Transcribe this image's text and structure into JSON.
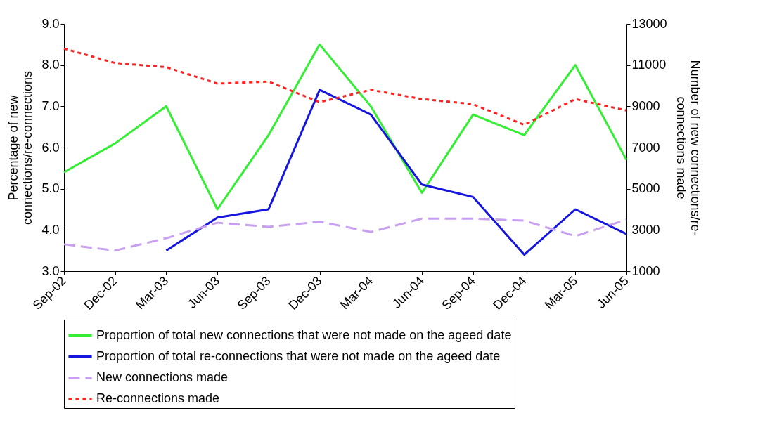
{
  "chart_data": {
    "type": "line",
    "ylabel": "Percentage of new connections/re-connections",
    "y2label": "Number of new connections/re-connections made",
    "categories": [
      "Sep-02",
      "Dec-02",
      "Mar-03",
      "Jun-03",
      "Sep-03",
      "Dec-03",
      "Mar-04",
      "Jun-04",
      "Sep-04",
      "Dec-04",
      "Mar-05",
      "Jun-05"
    ],
    "series": [
      {
        "name": "Proportion of total new connections that were not made on the ageed date",
        "color": "#33ee33",
        "line_style": "solid",
        "values": [
          5.4,
          6.1,
          7.0,
          4.5,
          6.3,
          8.5,
          7.0,
          4.9,
          6.8,
          6.3,
          8.0,
          5.7
        ]
      },
      {
        "name": "Proportion of total re-connections that were not made on the ageed date",
        "color": "#1515dd",
        "line_style": "solid",
        "values": [
          null,
          null,
          3.5,
          4.3,
          4.5,
          7.4,
          6.8,
          5.1,
          4.8,
          3.4,
          4.5,
          3.9
        ]
      },
      {
        "name": "New connections made",
        "color": "#c8a0f0",
        "line_style": "dashed",
        "axis": "y2",
        "values": [
          2300,
          2000,
          2600,
          3350,
          3150,
          3400,
          2900,
          3550,
          3550,
          3450,
          2700,
          3500
        ]
      },
      {
        "name": "Re-connections made",
        "color": "#ff2020",
        "line_style": "dotted",
        "axis": "y2",
        "values": [
          11800,
          11100,
          10900,
          10100,
          10200,
          9200,
          9800,
          9350,
          9100,
          8100,
          9350,
          8800
        ]
      }
    ],
    "ylim": [
      3,
      9
    ],
    "yticks": [
      {
        "value": 3,
        "label": "3.0"
      },
      {
        "value": 4,
        "label": "4.0"
      },
      {
        "value": 5,
        "label": "5.0"
      },
      {
        "value": 6,
        "label": "6.0"
      },
      {
        "value": 7,
        "label": "7.0"
      },
      {
        "value": 8,
        "label": "8.0"
      },
      {
        "value": 9,
        "label": "9.0"
      }
    ],
    "y2lim": [
      1000,
      13000
    ],
    "y2ticks": [
      1000,
      3000,
      5000,
      7000,
      9000,
      11000,
      13000
    ],
    "grid": false,
    "legend": "bottom"
  }
}
